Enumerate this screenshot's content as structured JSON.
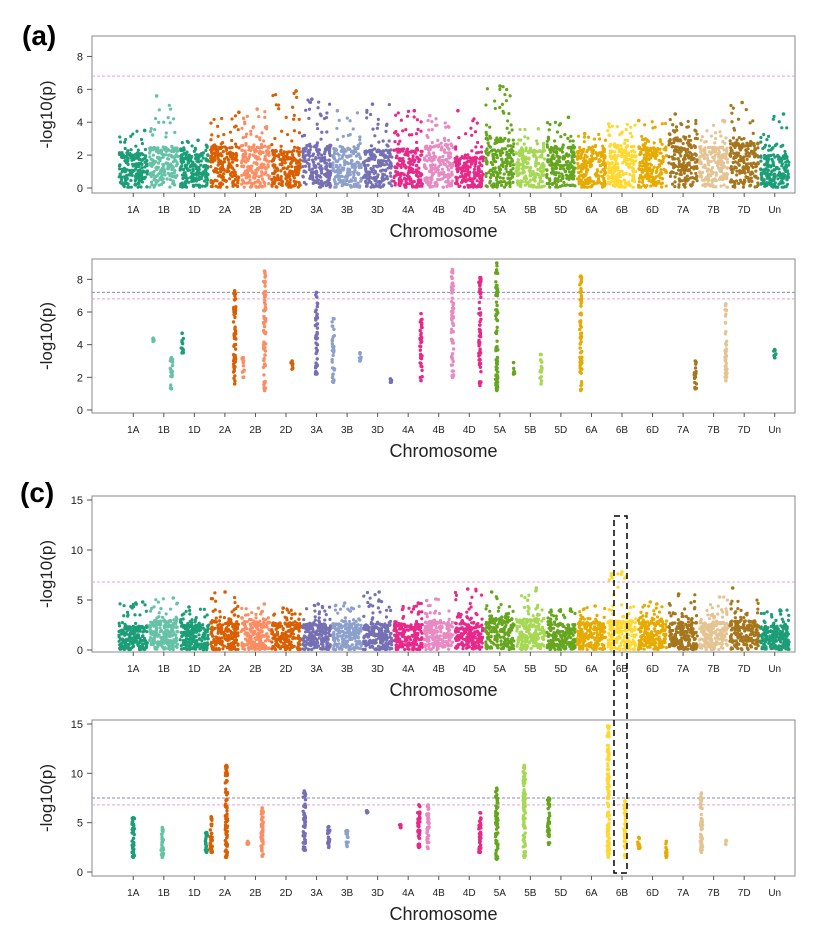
{
  "figure": {
    "panel_labels": [
      "(a)",
      "(c)"
    ],
    "chromosomes": [
      "1A",
      "1B",
      "1D",
      "2A",
      "2B",
      "2D",
      "3A",
      "3B",
      "3D",
      "4A",
      "4B",
      "4D",
      "5A",
      "5B",
      "5D",
      "6A",
      "6B",
      "6D",
      "7A",
      "7B",
      "7D",
      "Un"
    ],
    "colors": [
      "#1b9e77",
      "#66c2a5",
      "#1b9e77",
      "#d95f02",
      "#fc8d62",
      "#d95f02",
      "#7570b3",
      "#8da0cb",
      "#7570b3",
      "#e7298a",
      "#e78ac3",
      "#e7298a",
      "#66a61e",
      "#a6d854",
      "#66a61e",
      "#e6ab02",
      "#ffd92f",
      "#e6ab02",
      "#a6761d",
      "#e5c494",
      "#a6761d",
      "#1b9e77"
    ],
    "threshold_colors": {
      "pink": "#e7a2dc",
      "purple": "#8a86c2"
    },
    "highlight_box": {
      "chromosome": "6B",
      "style": "dashed"
    }
  },
  "chart_data": [
    {
      "type": "scatter",
      "title": "",
      "xlabel": "Chromosome",
      "ylabel": "-log10(p)",
      "ylim": [
        0,
        9
      ],
      "yticks": [
        0,
        2,
        4,
        6,
        8
      ],
      "thresholds": [
        6.8
      ],
      "dense": true,
      "baseline": [
        2.0,
        2.4,
        2.0,
        2.4,
        2.5,
        2.2,
        2.5,
        2.3,
        2.2,
        2.3,
        2.5,
        1.8,
        2.9,
        2.2,
        2.4,
        2.2,
        2.5,
        2.4,
        2.9,
        2.4,
        2.6,
        1.9
      ],
      "peaks": [
        3.5,
        5.6,
        2.9,
        4.6,
        4.8,
        5.9,
        5.4,
        4.7,
        5.1,
        4.7,
        4.4,
        4.7,
        6.2,
        3.6,
        4.3,
        3.3,
        3.9,
        4.1,
        4.5,
        4.1,
        5.2,
        4.5
      ]
    },
    {
      "type": "scatter",
      "title": "",
      "xlabel": "Chromosome",
      "ylabel": "-log10(p)",
      "ylim": [
        0,
        9
      ],
      "yticks": [
        0,
        2,
        4,
        6,
        8
      ],
      "thresholds": [
        6.8,
        7.2
      ],
      "dense": false,
      "columns": [
        {
          "chr": "1B",
          "pos": 0.15,
          "min": 4.2,
          "max": 4.4
        },
        {
          "chr": "1B",
          "pos": 0.75,
          "min": 1.3,
          "max": 3.2
        },
        {
          "chr": "1D",
          "pos": 0.1,
          "min": 3.5,
          "max": 4.7
        },
        {
          "chr": "2A",
          "pos": 0.82,
          "min": 1.6,
          "max": 7.3
        },
        {
          "chr": "2B",
          "pos": 0.1,
          "min": 2.0,
          "max": 3.2
        },
        {
          "chr": "2B",
          "pos": 0.8,
          "min": 1.2,
          "max": 8.5
        },
        {
          "chr": "2D",
          "pos": 0.7,
          "min": 2.5,
          "max": 3.0
        },
        {
          "chr": "3A",
          "pos": 0.5,
          "min": 2.2,
          "max": 7.2
        },
        {
          "chr": "3B",
          "pos": 0.05,
          "min": 1.7,
          "max": 5.6
        },
        {
          "chr": "3B",
          "pos": 0.92,
          "min": 3.0,
          "max": 3.5
        },
        {
          "chr": "3D",
          "pos": 0.92,
          "min": 1.7,
          "max": 1.9
        },
        {
          "chr": "4A",
          "pos": 0.92,
          "min": 1.8,
          "max": 5.9
        },
        {
          "chr": "4B",
          "pos": 0.95,
          "min": 2.0,
          "max": 8.6
        },
        {
          "chr": "4D",
          "pos": 0.85,
          "min": 1.5,
          "max": 8.1
        },
        {
          "chr": "5A",
          "pos": 0.4,
          "min": 1.2,
          "max": 9.0
        },
        {
          "chr": "5A",
          "pos": 0.95,
          "min": 2.2,
          "max": 2.9
        },
        {
          "chr": "5B",
          "pos": 0.85,
          "min": 1.6,
          "max": 3.4
        },
        {
          "chr": "6A",
          "pos": 0.15,
          "min": 1.2,
          "max": 8.2
        },
        {
          "chr": "7A",
          "pos": 0.9,
          "min": 1.3,
          "max": 3.0
        },
        {
          "chr": "7B",
          "pos": 0.9,
          "min": 1.8,
          "max": 6.5
        },
        {
          "chr": "Un",
          "pos": 0.5,
          "min": 3.2,
          "max": 3.7
        }
      ]
    },
    {
      "type": "scatter",
      "title": "",
      "xlabel": "Chromosome",
      "ylabel": "-log10(p)",
      "ylim": [
        0,
        15
      ],
      "yticks": [
        0,
        5,
        10,
        15
      ],
      "thresholds": [
        6.8
      ],
      "dense": true,
      "baseline": [
        2.3,
        2.8,
        2.4,
        2.8,
        2.7,
        2.6,
        2.5,
        2.5,
        2.5,
        2.5,
        2.7,
        2.6,
        3.0,
        3.0,
        2.5,
        2.6,
        2.8,
        2.8,
        2.7,
        2.7,
        2.8,
        2.3
      ],
      "peaks": [
        4.8,
        5.2,
        4.3,
        5.8,
        4.6,
        4.2,
        4.6,
        4.7,
        5.8,
        4.7,
        5.1,
        6.1,
        5.8,
        6.2,
        4.1,
        4.4,
        7.8,
        4.8,
        5.6,
        5.3,
        6.2,
        4.0
      ]
    },
    {
      "type": "scatter",
      "title": "",
      "xlabel": "Chromosome",
      "ylabel": "-log10(p)",
      "ylim": [
        0,
        15
      ],
      "yticks": [
        0,
        5,
        10,
        15
      ],
      "thresholds": [
        6.8,
        7.5
      ],
      "dense": false,
      "columns": [
        {
          "chr": "1A",
          "pos": 0.5,
          "min": 1.5,
          "max": 5.5
        },
        {
          "chr": "1B",
          "pos": 0.45,
          "min": 1.5,
          "max": 4.5
        },
        {
          "chr": "1D",
          "pos": 0.9,
          "min": 2.0,
          "max": 4.0
        },
        {
          "chr": "2A",
          "pos": 0.05,
          "min": 2.0,
          "max": 5.6
        },
        {
          "chr": "2A",
          "pos": 0.55,
          "min": 1.5,
          "max": 10.8
        },
        {
          "chr": "2B",
          "pos": 0.25,
          "min": 2.8,
          "max": 3.1
        },
        {
          "chr": "2B",
          "pos": 0.72,
          "min": 1.6,
          "max": 6.5
        },
        {
          "chr": "3A",
          "pos": 0.1,
          "min": 2.2,
          "max": 8.2
        },
        {
          "chr": "3A",
          "pos": 0.9,
          "min": 2.5,
          "max": 4.6
        },
        {
          "chr": "3B",
          "pos": 0.5,
          "min": 2.6,
          "max": 4.2
        },
        {
          "chr": "3D",
          "pos": 0.15,
          "min": 6.0,
          "max": 6.2
        },
        {
          "chr": "4A",
          "pos": 0.25,
          "min": 4.5,
          "max": 4.8
        },
        {
          "chr": "4A",
          "pos": 0.85,
          "min": 2.5,
          "max": 6.8
        },
        {
          "chr": "4B",
          "pos": 0.15,
          "min": 2.4,
          "max": 6.8
        },
        {
          "chr": "4D",
          "pos": 0.85,
          "min": 2.0,
          "max": 6.0
        },
        {
          "chr": "5A",
          "pos": 0.4,
          "min": 1.3,
          "max": 8.5
        },
        {
          "chr": "5B",
          "pos": 0.3,
          "min": 1.5,
          "max": 10.8
        },
        {
          "chr": "5D",
          "pos": 0.1,
          "min": 2.8,
          "max": 7.5
        },
        {
          "chr": "6B",
          "pos": 0.05,
          "min": 1.5,
          "max": 14.8
        },
        {
          "chr": "6B",
          "pos": 0.6,
          "min": 1.5,
          "max": 7.2
        },
        {
          "chr": "6D",
          "pos": 0.05,
          "min": 2.4,
          "max": 3.5
        },
        {
          "chr": "6D",
          "pos": 0.95,
          "min": 1.5,
          "max": 3.1
        },
        {
          "chr": "7B",
          "pos": 0.1,
          "min": 2.0,
          "max": 8.0
        },
        {
          "chr": "7B",
          "pos": 0.9,
          "min": 2.8,
          "max": 3.2
        }
      ]
    }
  ]
}
